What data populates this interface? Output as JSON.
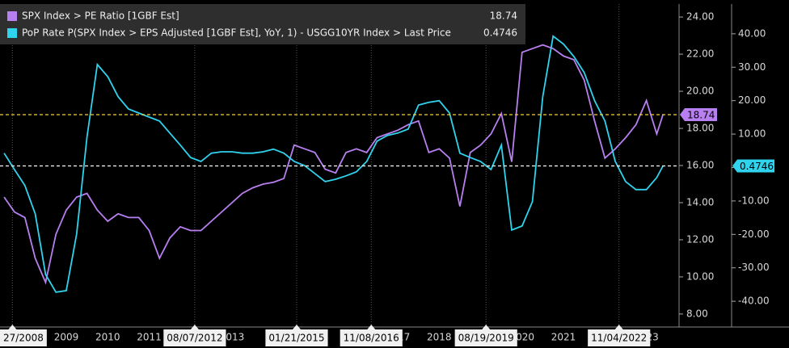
{
  "chart_data": {
    "type": "line",
    "x": [
      2008.0,
      2008.25,
      2008.5,
      2008.75,
      2009.0,
      2009.25,
      2009.5,
      2009.75,
      2010.0,
      2010.25,
      2010.5,
      2010.75,
      2011.0,
      2011.25,
      2011.5,
      2011.75,
      2012.0,
      2012.25,
      2012.5,
      2012.75,
      2013.0,
      2013.25,
      2013.5,
      2013.75,
      2014.0,
      2014.25,
      2014.5,
      2014.75,
      2015.0,
      2015.25,
      2015.5,
      2015.75,
      2016.0,
      2016.25,
      2016.5,
      2016.75,
      2017.0,
      2017.25,
      2017.5,
      2017.75,
      2018.0,
      2018.25,
      2018.5,
      2018.75,
      2019.0,
      2019.25,
      2019.5,
      2019.75,
      2020.0,
      2020.25,
      2020.5,
      2020.75,
      2021.0,
      2021.25,
      2021.5,
      2021.75,
      2022.0,
      2022.25,
      2022.5,
      2022.75,
      2023.0,
      2023.25,
      2023.5,
      2023.75,
      2023.9
    ],
    "series": [
      {
        "name": "SPX Index > PE Ratio [1GBF Est]",
        "color": "#b87ff0",
        "last_value": 18.74,
        "last_line_color": "#f2d43a",
        "values": [
          14.3,
          13.5,
          13.2,
          11.0,
          9.7,
          12.3,
          13.6,
          14.3,
          14.5,
          13.6,
          13.0,
          13.4,
          13.2,
          13.2,
          12.5,
          11.0,
          12.1,
          12.7,
          12.5,
          12.5,
          13.0,
          13.5,
          14.0,
          14.5,
          14.8,
          15.0,
          15.1,
          15.3,
          17.1,
          16.9,
          16.7,
          15.8,
          15.6,
          16.7,
          16.9,
          16.7,
          17.5,
          17.7,
          17.9,
          18.2,
          18.4,
          16.7,
          16.9,
          16.4,
          13.8,
          16.7,
          17.1,
          17.7,
          18.8,
          16.2,
          22.1,
          22.3,
          22.5,
          22.3,
          21.9,
          21.7,
          20.6,
          18.4,
          16.4,
          16.9,
          17.5,
          18.2,
          19.5,
          17.7,
          18.74
        ]
      },
      {
        "name": "PoP Rate P(SPX Index > EPS Adjusted [1GBF Est], YoY, 1) - USGG10YR Index > Last Price",
        "color": "#2fd3ee",
        "axis": "y2",
        "last_value": 0.4746,
        "last_line_color": "#ffffff",
        "values": [
          4.3,
          -0.6,
          -5.4,
          -13.9,
          -32,
          -37.3,
          -36.8,
          -19.9,
          9.1,
          30.8,
          27.2,
          21.2,
          17.5,
          16.3,
          15.1,
          13.9,
          10.3,
          6.7,
          3.0,
          1.8,
          4.3,
          4.7,
          4.7,
          4.3,
          4.3,
          4.7,
          5.5,
          4.3,
          1.8,
          0.6,
          -1.8,
          -4.2,
          -3.5,
          -2.5,
          -1.3,
          1.8,
          7.9,
          9.6,
          10.3,
          11.5,
          18.7,
          19.5,
          20.0,
          16.3,
          4.3,
          3.0,
          1.8,
          -0.6,
          6.7,
          -18.7,
          -17.5,
          -10.2,
          21.2,
          39.3,
          36.9,
          33.2,
          28.4,
          20.0,
          13.9,
          1.8,
          -4.2,
          -6.6,
          -6.6,
          -3.0,
          0.4746
        ]
      }
    ],
    "xlim": [
      2007.9,
      2024.25
    ],
    "xticks": [
      {
        "value": 2009.5,
        "label": "2009"
      },
      {
        "value": 2010.5,
        "label": "2010"
      },
      {
        "value": 2011.5,
        "label": "2011"
      },
      {
        "value": 2013.5,
        "label": "2013"
      },
      {
        "value": 2017.5,
        "label": "2017"
      },
      {
        "value": 2018.5,
        "label": "2018"
      },
      {
        "value": 2020.5,
        "label": "2020"
      },
      {
        "value": 2021.5,
        "label": "2021"
      },
      {
        "value": 2023.5,
        "label": "2023"
      }
    ],
    "date_ticks": [
      {
        "value": 2008.2,
        "label": "27/2008"
      },
      {
        "value": 2012.6,
        "label": "08/07/2012"
      },
      {
        "value": 2015.06,
        "label": "01/21/2015"
      },
      {
        "value": 2016.86,
        "label": "11/08/2016"
      },
      {
        "value": 2019.63,
        "label": "08/19/2019"
      },
      {
        "value": 2022.84,
        "label": "11/04/2022"
      }
    ],
    "ylim": [
      7.3,
      24.7
    ],
    "yticks": [
      {
        "value": 8,
        "label": "8.00"
      },
      {
        "value": 10,
        "label": "10.00"
      },
      {
        "value": 12,
        "label": "12.00"
      },
      {
        "value": 14,
        "label": "14.00"
      },
      {
        "value": 16,
        "label": "16.00"
      },
      {
        "value": 18,
        "label": "18.00"
      },
      {
        "value": 20,
        "label": "20.00"
      },
      {
        "value": 22,
        "label": "22.00"
      },
      {
        "value": 24,
        "label": "24.00"
      }
    ],
    "y2lim": [
      -47.7,
      48.9
    ],
    "y2ticks": [
      {
        "value": -40,
        "label": "-40.00"
      },
      {
        "value": -30,
        "label": "-30.00"
      },
      {
        "value": -20,
        "label": "-20.00"
      },
      {
        "value": -10,
        "label": "-10.00"
      },
      {
        "value": 0,
        "label": "0.00"
      },
      {
        "value": 10,
        "label": "10.00"
      },
      {
        "value": 20,
        "label": "20.00"
      },
      {
        "value": 30,
        "label": "30.00"
      },
      {
        "value": 40,
        "label": "40.00"
      }
    ]
  }
}
